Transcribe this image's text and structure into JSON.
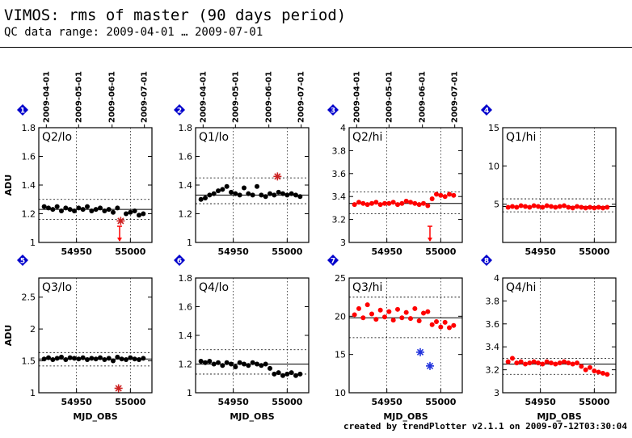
{
  "header": {
    "title": "VIMOS: rms of master (90 days period)",
    "subtitle": "QC data range: 2009-04-01 … 2009-07-01"
  },
  "footer": {
    "text": "created by trendPlotter v2.1.1 on 2009-07-12T03:30:04"
  },
  "colors": {
    "normal": "#000000",
    "hi": "#ff0000",
    "outlier": "#cc2222",
    "blue": "#2233dd",
    "marker": "#0000cc"
  },
  "chart_data": [
    {
      "type": "scatter",
      "panel": "1",
      "label": "Q2/lo",
      "ylabel": "ADU",
      "xlabel": "",
      "xlim": [
        54915,
        55020
      ],
      "ylim": [
        1,
        1.8
      ],
      "yticks": [
        1,
        1.2,
        1.4,
        1.6,
        1.8
      ],
      "ytick_labels": [
        "1",
        "1.2",
        "1.4",
        "1.6",
        "1.8"
      ],
      "xticks": [
        54950,
        55000
      ],
      "xtick_labels": [
        "54950",
        "55000"
      ],
      "date_ticks": [
        "2009-04-01",
        "2009-05-01",
        "2009-06-01",
        "2009-07-01"
      ],
      "date_mjd": [
        54922,
        54952,
        54983,
        55013
      ],
      "hlines_dotted": [
        1.3,
        1.16
      ],
      "hline_solid": 1.23,
      "series": [
        {
          "color": "black",
          "x": [
            54920,
            54924,
            54928,
            54932,
            54936,
            54940,
            54944,
            54948,
            54952,
            54956,
            54960,
            54964,
            54968,
            54972,
            54976,
            54980,
            54984,
            54988,
            54996,
            55000,
            55004,
            55008,
            55012
          ],
          "y": [
            1.25,
            1.24,
            1.23,
            1.25,
            1.22,
            1.24,
            1.23,
            1.22,
            1.24,
            1.23,
            1.25,
            1.22,
            1.23,
            1.24,
            1.22,
            1.23,
            1.21,
            1.24,
            1.2,
            1.21,
            1.22,
            1.19,
            1.2
          ]
        }
      ],
      "outliers": [
        {
          "x": 54991,
          "y": 1.15,
          "marker": "star"
        }
      ],
      "arrows_below": [
        54990
      ]
    },
    {
      "type": "scatter",
      "panel": "2",
      "label": "Q1/lo",
      "ylabel": "",
      "xlabel": "",
      "xlim": [
        54915,
        55020
      ],
      "ylim": [
        1,
        1.8
      ],
      "yticks": [
        1,
        1.2,
        1.4,
        1.6,
        1.8
      ],
      "ytick_labels": [
        "1",
        "1.2",
        "1.4",
        "1.6",
        "1.8"
      ],
      "xticks": [
        54950,
        55000
      ],
      "xtick_labels": [
        "54950",
        "55000"
      ],
      "date_ticks": [
        "2009-04-01",
        "2009-05-01",
        "2009-06-01",
        "2009-07-01"
      ],
      "date_mjd": [
        54922,
        54952,
        54983,
        55013
      ],
      "hlines_dotted": [
        1.45,
        1.27
      ],
      "hline_solid": 1.33,
      "series": [
        {
          "color": "black",
          "x": [
            54920,
            54924,
            54928,
            54932,
            54936,
            54940,
            54944,
            54948,
            54952,
            54956,
            54960,
            54964,
            54968,
            54972,
            54976,
            54980,
            54984,
            54988,
            54992,
            54996,
            55000,
            55004,
            55008,
            55012
          ],
          "y": [
            1.3,
            1.31,
            1.33,
            1.34,
            1.36,
            1.37,
            1.39,
            1.35,
            1.34,
            1.33,
            1.38,
            1.34,
            1.33,
            1.39,
            1.33,
            1.32,
            1.34,
            1.33,
            1.35,
            1.34,
            1.33,
            1.34,
            1.33,
            1.32
          ]
        }
      ],
      "outliers": [
        {
          "x": 54991,
          "y": 1.46,
          "marker": "star"
        }
      ],
      "arrows_below": []
    },
    {
      "type": "scatter",
      "panel": "3",
      "label": "Q2/hi",
      "ylabel": "",
      "xlabel": "",
      "xlim": [
        54915,
        55020
      ],
      "ylim": [
        3,
        4
      ],
      "yticks": [
        3,
        3.2,
        3.4,
        3.6,
        3.8,
        4
      ],
      "ytick_labels": [
        "3",
        "3.2",
        "3.4",
        "3.6",
        "3.8",
        "4"
      ],
      "xticks": [
        54950,
        55000
      ],
      "xtick_labels": [
        "54950",
        "55000"
      ],
      "date_ticks": [
        "2009-04-01",
        "2009-05-01",
        "2009-06-01",
        "2009-07-01"
      ],
      "date_mjd": [
        54922,
        54952,
        54983,
        55013
      ],
      "hlines_dotted": [
        3.44,
        3.25
      ],
      "hline_solid": 3.34,
      "series": [
        {
          "color": "red",
          "x": [
            54920,
            54924,
            54928,
            54932,
            54936,
            54940,
            54944,
            54948,
            54952,
            54956,
            54960,
            54964,
            54968,
            54972,
            54976,
            54980,
            54984,
            54988,
            54992,
            54996,
            55000,
            55004,
            55008,
            55012
          ],
          "y": [
            3.33,
            3.35,
            3.34,
            3.33,
            3.34,
            3.35,
            3.33,
            3.34,
            3.34,
            3.35,
            3.33,
            3.34,
            3.36,
            3.35,
            3.34,
            3.33,
            3.34,
            3.32,
            3.38,
            3.42,
            3.41,
            3.4,
            3.42,
            3.41
          ]
        }
      ],
      "outliers": [],
      "arrows_below": [
        54990
      ]
    },
    {
      "type": "scatter",
      "panel": "4",
      "label": "Q1/hi",
      "ylabel": "",
      "xlabel": "",
      "xlim": [
        54915,
        55020
      ],
      "ylim": [
        0,
        15
      ],
      "yticks": [
        5,
        10,
        15
      ],
      "ytick_labels": [
        "5",
        "10",
        "15"
      ],
      "xticks": [
        54950,
        55000
      ],
      "xtick_labels": [
        "54950",
        "55000"
      ],
      "date_ticks": [],
      "date_mjd": [],
      "hlines_dotted": [
        5.7,
        4.0
      ],
      "hline_solid": 4.7,
      "series": [
        {
          "color": "red",
          "x": [
            54920,
            54924,
            54928,
            54932,
            54936,
            54940,
            54944,
            54948,
            54952,
            54956,
            54960,
            54964,
            54968,
            54972,
            54976,
            54980,
            54984,
            54988,
            54992,
            54996,
            55000,
            55004,
            55008,
            55012
          ],
          "y": [
            4.6,
            4.7,
            4.6,
            4.8,
            4.7,
            4.6,
            4.8,
            4.7,
            4.6,
            4.8,
            4.7,
            4.6,
            4.7,
            4.8,
            4.6,
            4.5,
            4.7,
            4.6,
            4.5,
            4.6,
            4.5,
            4.6,
            4.5,
            4.6
          ]
        }
      ],
      "outliers": [],
      "arrows_below": []
    },
    {
      "type": "scatter",
      "panel": "5",
      "label": "Q3/lo",
      "ylabel": "ADU",
      "xlabel": "MJD_OBS",
      "xlim": [
        54915,
        55020
      ],
      "ylim": [
        1,
        2.8
      ],
      "yticks": [
        1,
        1.5,
        2,
        2.5
      ],
      "ytick_labels": [
        "1",
        "1.5",
        "2",
        "2.5"
      ],
      "xticks": [
        54950,
        55000
      ],
      "xtick_labels": [
        "54950",
        "55000"
      ],
      "date_ticks": [],
      "date_mjd": [],
      "hlines_dotted": [
        1.63,
        1.42
      ],
      "hline_solid": 1.53,
      "series": [
        {
          "color": "black",
          "x": [
            54920,
            54924,
            54928,
            54932,
            54936,
            54940,
            54944,
            54948,
            54952,
            54956,
            54960,
            54964,
            54968,
            54972,
            54976,
            54980,
            54984,
            54988,
            54992,
            54996,
            55000,
            55004,
            55008,
            55012
          ],
          "y": [
            1.53,
            1.55,
            1.52,
            1.54,
            1.56,
            1.52,
            1.55,
            1.54,
            1.53,
            1.55,
            1.52,
            1.54,
            1.53,
            1.55,
            1.52,
            1.54,
            1.5,
            1.56,
            1.53,
            1.52,
            1.55,
            1.53,
            1.52,
            1.54
          ]
        }
      ],
      "outliers": [
        {
          "x": 54989,
          "y": 1.07,
          "marker": "star"
        }
      ],
      "arrows_below": []
    },
    {
      "type": "scatter",
      "panel": "6",
      "label": "Q4/lo",
      "ylabel": "",
      "xlabel": "MJD_OBS",
      "xlim": [
        54915,
        55020
      ],
      "ylim": [
        1,
        1.8
      ],
      "yticks": [
        1,
        1.2,
        1.4,
        1.6,
        1.8
      ],
      "ytick_labels": [
        "1",
        "1.2",
        "1.4",
        "1.6",
        "1.8"
      ],
      "xticks": [
        54950,
        55000
      ],
      "xtick_labels": [
        "54950",
        "55000"
      ],
      "date_ticks": [],
      "date_mjd": [],
      "hlines_dotted": [
        1.3,
        1.13
      ],
      "hline_solid": 1.2,
      "series": [
        {
          "color": "black",
          "x": [
            54920,
            54924,
            54928,
            54932,
            54936,
            54940,
            54944,
            54948,
            54952,
            54956,
            54960,
            54964,
            54968,
            54972,
            54976,
            54980,
            54984,
            54988,
            54992,
            54996,
            55000,
            55004,
            55008,
            55012
          ],
          "y": [
            1.22,
            1.21,
            1.22,
            1.2,
            1.21,
            1.19,
            1.21,
            1.2,
            1.18,
            1.21,
            1.2,
            1.19,
            1.21,
            1.2,
            1.19,
            1.2,
            1.17,
            1.13,
            1.14,
            1.12,
            1.13,
            1.14,
            1.12,
            1.13
          ]
        }
      ],
      "outliers": [],
      "arrows_below": []
    },
    {
      "type": "scatter",
      "panel": "7",
      "label": "Q3/hi",
      "ylabel": "",
      "xlabel": "MJD_OBS",
      "xlim": [
        54915,
        55020
      ],
      "ylim": [
        10,
        25
      ],
      "yticks": [
        10,
        15,
        20,
        25
      ],
      "ytick_labels": [
        "10",
        "15",
        "20",
        "25"
      ],
      "xticks": [
        54950,
        55000
      ],
      "xtick_labels": [
        "54950",
        "55000"
      ],
      "date_ticks": [],
      "date_mjd": [],
      "hlines_dotted": [
        22.5,
        17.2
      ],
      "hline_solid": 19.8,
      "series": [
        {
          "color": "red",
          "x": [
            54920,
            54924,
            54928,
            54932,
            54936,
            54940,
            54944,
            54948,
            54952,
            54956,
            54960,
            54964,
            54968,
            54972,
            54976,
            54980,
            54984,
            54988,
            54992,
            54996,
            55000,
            55004,
            55008,
            55012
          ],
          "y": [
            20.2,
            21.0,
            19.8,
            21.5,
            20.3,
            19.6,
            20.8,
            19.9,
            20.6,
            19.5,
            20.9,
            19.8,
            20.5,
            19.7,
            21.0,
            19.4,
            20.4,
            20.6,
            18.9,
            19.3,
            18.6,
            19.2,
            18.5,
            18.8
          ]
        }
      ],
      "outliers": [
        {
          "x": 54981,
          "y": 15.3,
          "marker": "star-blue"
        },
        {
          "x": 54990,
          "y": 13.5,
          "marker": "star-blue"
        }
      ],
      "arrows_below": []
    },
    {
      "type": "scatter",
      "panel": "8",
      "label": "Q4/hi",
      "ylabel": "",
      "xlabel": "MJD_OBS",
      "xlim": [
        54915,
        55020
      ],
      "ylim": [
        3,
        4
      ],
      "yticks": [
        3,
        3.2,
        3.4,
        3.6,
        3.8,
        4
      ],
      "ytick_labels": [
        "3",
        "3.2",
        "3.4",
        "3.6",
        "3.8",
        "4"
      ],
      "xticks": [
        54950,
        55000
      ],
      "xtick_labels": [
        "54950",
        "55000"
      ],
      "date_ticks": [],
      "date_mjd": [],
      "hlines_dotted": [
        3.3,
        3.16
      ],
      "hline_solid": 3.25,
      "series": [
        {
          "color": "red",
          "x": [
            54920,
            54924,
            54928,
            54932,
            54936,
            54940,
            54944,
            54948,
            54952,
            54956,
            54960,
            54964,
            54968,
            54972,
            54976,
            54980,
            54984,
            54988,
            54992,
            54996,
            55000,
            55004,
            55008,
            55012
          ],
          "y": [
            3.27,
            3.3,
            3.26,
            3.27,
            3.25,
            3.26,
            3.27,
            3.26,
            3.25,
            3.27,
            3.26,
            3.25,
            3.26,
            3.27,
            3.26,
            3.25,
            3.26,
            3.23,
            3.2,
            3.22,
            3.19,
            3.18,
            3.17,
            3.16
          ]
        }
      ],
      "outliers": [],
      "arrows_below": []
    }
  ]
}
